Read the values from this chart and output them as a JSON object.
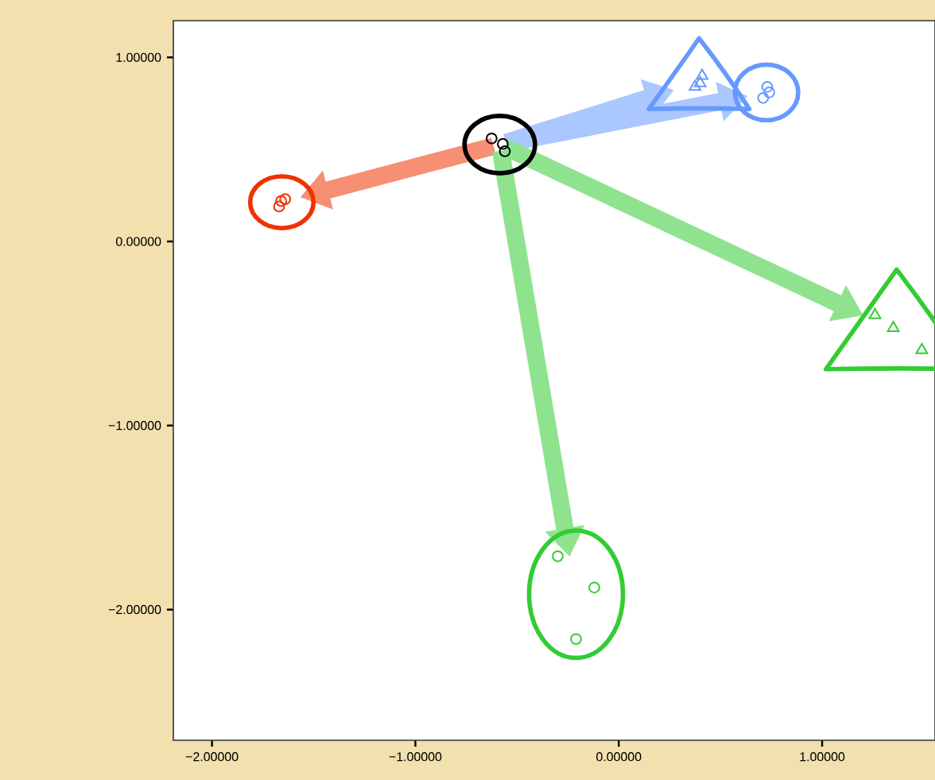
{
  "chart_data": {
    "type": "scatter",
    "grid": false,
    "xlim": [
      -2.19,
      1.555
    ],
    "ylim": [
      -2.71,
      1.2
    ],
    "xticks": [
      {
        "value": -2,
        "label": "−2.00000"
      },
      {
        "value": -1,
        "label": "−1.00000"
      },
      {
        "value": 0,
        "label": "0.00000"
      },
      {
        "value": 1,
        "label": "1.00000"
      }
    ],
    "yticks": [
      {
        "value": -2,
        "label": "−2.00000"
      },
      {
        "value": -1,
        "label": "−1.00000"
      },
      {
        "value": 0,
        "label": "0.00000"
      },
      {
        "value": 1,
        "label": "1.00000"
      }
    ],
    "series": [
      {
        "color": "#000000",
        "marker": "circle",
        "x": [
          -0.625,
          -0.57,
          -0.56
        ],
        "values": [
          0.56,
          0.53,
          0.49
        ]
      },
      {
        "color": "#ee3300",
        "marker": "circle",
        "x": [
          -1.66,
          -1.64,
          -1.67
        ],
        "values": [
          0.22,
          0.23,
          0.19
        ]
      },
      {
        "color": "#6699ff",
        "marker": "triangle",
        "x": [
          0.41,
          0.4,
          0.375
        ],
        "values": [
          0.9,
          0.86,
          0.84
        ]
      },
      {
        "color": "#6699ff",
        "marker": "circle",
        "x": [
          0.73,
          0.74,
          0.71
        ],
        "values": [
          0.84,
          0.81,
          0.78
        ]
      },
      {
        "color": "#33cc33",
        "marker": "triangle",
        "x": [
          1.26,
          1.35,
          1.49
        ],
        "values": [
          -0.4,
          -0.47,
          -0.59
        ]
      },
      {
        "color": "#33cc33",
        "marker": "circle",
        "x": [
          -0.3,
          -0.12,
          -0.21
        ],
        "values": [
          -1.71,
          -1.88,
          -2.16
        ]
      }
    ]
  }
}
